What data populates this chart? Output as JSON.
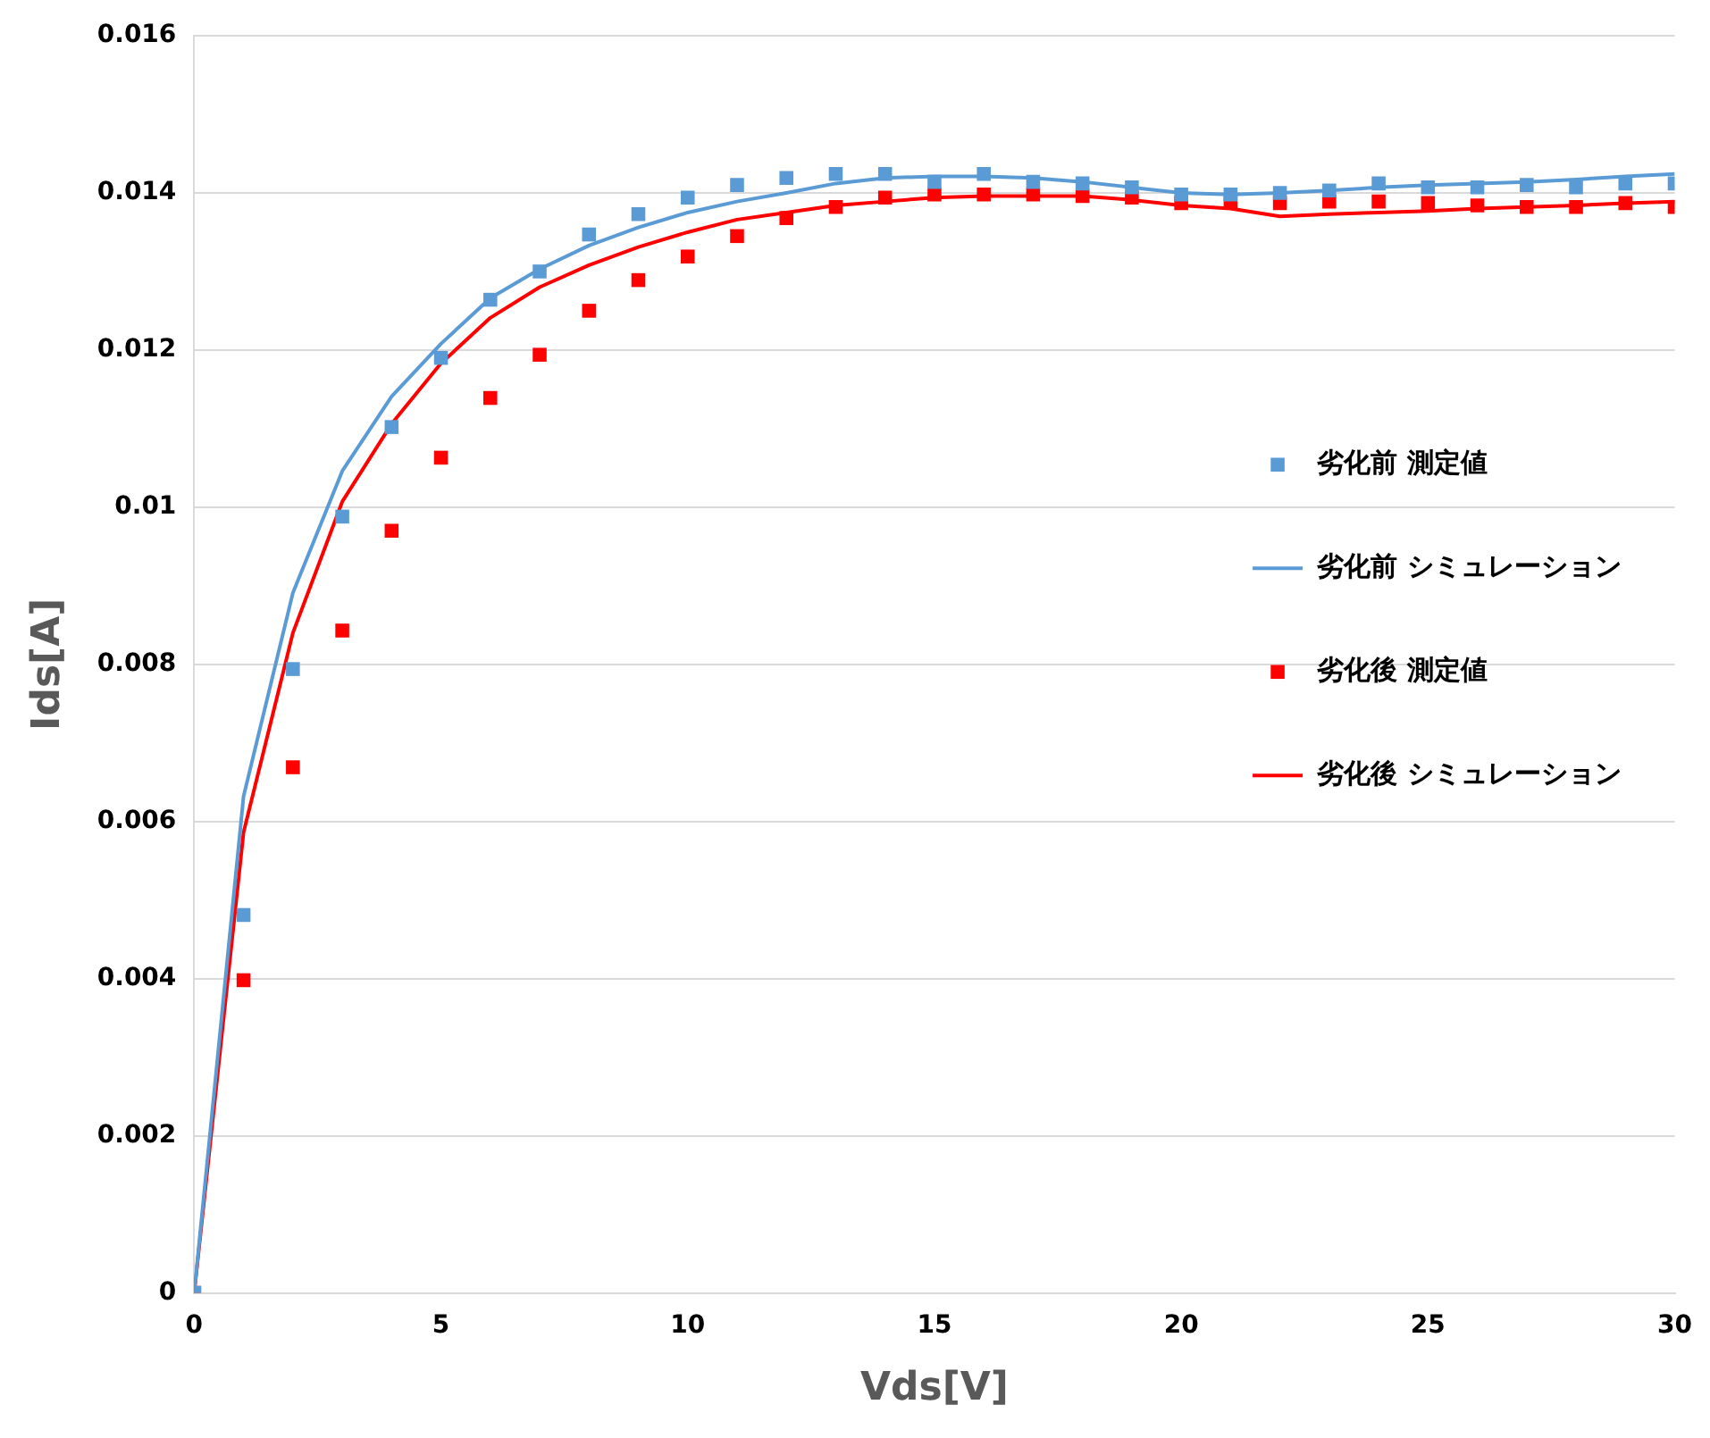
{
  "chart_data": {
    "type": "scatter",
    "xlabel": "Vds[V]",
    "ylabel": "Ids[A]",
    "x": [
      0,
      1,
      2,
      3,
      4,
      5,
      6,
      7,
      8,
      9,
      10,
      11,
      12,
      13,
      14,
      15,
      16,
      17,
      18,
      19,
      20,
      21,
      22,
      23,
      24,
      25,
      26,
      27,
      28,
      29,
      30
    ],
    "series": [
      {
        "name": "劣化前 測定値",
        "marker": "square",
        "color": "#5b9bd5",
        "values": [
          0,
          0.00481,
          0.00794,
          0.00988,
          0.01102,
          0.0119,
          0.01264,
          0.013,
          0.01347,
          0.01373,
          0.01394,
          0.0141,
          0.01419,
          0.01424,
          0.01424,
          0.01414,
          0.01424,
          0.01414,
          0.01412,
          0.01407,
          0.01398,
          0.01398,
          0.014,
          0.01403,
          0.01412,
          0.01407,
          0.01407,
          0.0141,
          0.01407,
          0.01412,
          0.01412
        ]
      },
      {
        "name": "劣化前 シミュレーション",
        "type": "line",
        "marker": "none",
        "color": "#5b9bd5",
        "values": [
          0,
          0.00632,
          0.00891,
          0.01046,
          0.01141,
          0.01208,
          0.01266,
          0.01303,
          0.01333,
          0.01356,
          0.01375,
          0.01389,
          0.014,
          0.01412,
          0.01419,
          0.01421,
          0.01421,
          0.01419,
          0.01414,
          0.01407,
          0.014,
          0.01398,
          0.014,
          0.01403,
          0.01407,
          0.0141,
          0.01412,
          0.01414,
          0.01417,
          0.01421,
          0.01424
        ]
      },
      {
        "name": "劣化後 測定値",
        "marker": "square",
        "color": "#ff0000",
        "values": [
          0,
          0.00398,
          0.00669,
          0.00843,
          0.0097,
          0.01063,
          0.01139,
          0.01194,
          0.0125,
          0.01289,
          0.01319,
          0.01345,
          0.01368,
          0.01382,
          0.01394,
          0.01398,
          0.01398,
          0.01398,
          0.01396,
          0.01394,
          0.01387,
          0.01389,
          0.01387,
          0.01389,
          0.01389,
          0.01387,
          0.01384,
          0.01382,
          0.01382,
          0.01387,
          0.01382
        ]
      },
      {
        "name": "劣化後 シミュレーション",
        "type": "line",
        "marker": "none",
        "color": "#ff0000",
        "values": [
          0,
          0.00586,
          0.0084,
          0.01007,
          0.01106,
          0.01183,
          0.01241,
          0.0128,
          0.01308,
          0.01331,
          0.0135,
          0.01366,
          0.01375,
          0.01384,
          0.01389,
          0.01394,
          0.01396,
          0.01396,
          0.01396,
          0.01391,
          0.01384,
          0.0138,
          0.0137,
          0.01373,
          0.01375,
          0.01377,
          0.0138,
          0.01382,
          0.01384,
          0.01387,
          0.01389
        ]
      }
    ],
    "xlim": [
      0,
      30
    ],
    "xticks": [
      0,
      5,
      10,
      15,
      20,
      25,
      30
    ],
    "ylim": [
      0,
      0.016
    ],
    "yticks": [
      0,
      0.002,
      0.004,
      0.006,
      0.008,
      0.01,
      0.012,
      0.014,
      0.016
    ],
    "grid": "y",
    "legend": "right"
  }
}
